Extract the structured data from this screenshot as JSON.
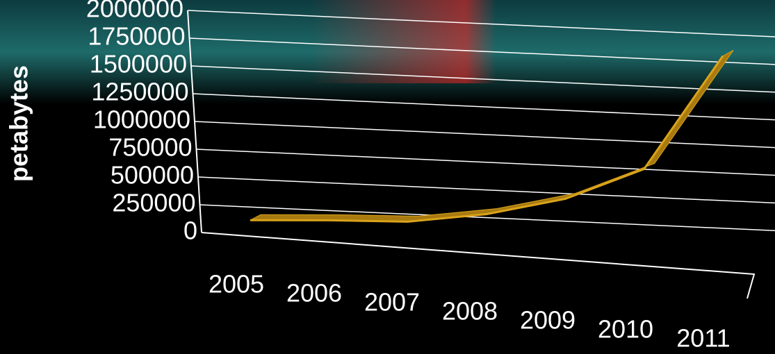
{
  "chart_data": {
    "type": "line",
    "y_label": "petabytes",
    "categories": [
      "2005",
      "2006",
      "2007",
      "2008",
      "2009",
      "2010",
      "2011"
    ],
    "series": [
      {
        "name": "petabytes",
        "color": "#d9a31a",
        "values": [
          130000,
          161000,
          180000,
          280000,
          450000,
          750000,
          1800000
        ]
      }
    ],
    "ylim": [
      0,
      2000000
    ],
    "yticks": [
      0,
      250000,
      500000,
      750000,
      1000000,
      1250000,
      1500000,
      1750000,
      2000000
    ],
    "grid": true
  }
}
